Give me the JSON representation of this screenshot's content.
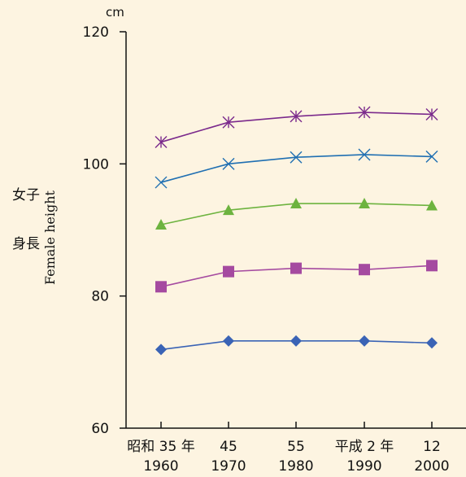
{
  "chart_data": {
    "type": "line",
    "unit": "cm",
    "ylabel_jp_1": "女子",
    "ylabel_jp_2": "身長",
    "ylabel_en": "Female height",
    "ylim": [
      60,
      120
    ],
    "yticks": [
      60,
      80,
      100,
      120
    ],
    "categories": [
      {
        "era": "昭和 35 年",
        "year": "1960"
      },
      {
        "era": "45",
        "year": "1970"
      },
      {
        "era": "55",
        "year": "1980"
      },
      {
        "era": "平成 2 年",
        "year": "1990"
      },
      {
        "era": "12",
        "year": "2000"
      }
    ],
    "series": [
      {
        "marker": "asterisk",
        "color": "#7b2a8c",
        "values": [
          103.3,
          106.3,
          107.2,
          107.8,
          107.5
        ]
      },
      {
        "marker": "x",
        "color": "#1f6fb2",
        "values": [
          97.2,
          100.0,
          101.0,
          101.4,
          101.1
        ]
      },
      {
        "marker": "triangle",
        "color": "#6db33f",
        "values": [
          90.8,
          93.0,
          94.0,
          94.0,
          93.7
        ]
      },
      {
        "marker": "square",
        "color": "#a54aa0",
        "values": [
          81.4,
          83.7,
          84.2,
          84.0,
          84.6
        ]
      },
      {
        "marker": "diamond",
        "color": "#3a63b5",
        "values": [
          71.9,
          73.2,
          73.2,
          73.2,
          72.9
        ]
      }
    ],
    "grid": false,
    "legend": "none"
  }
}
